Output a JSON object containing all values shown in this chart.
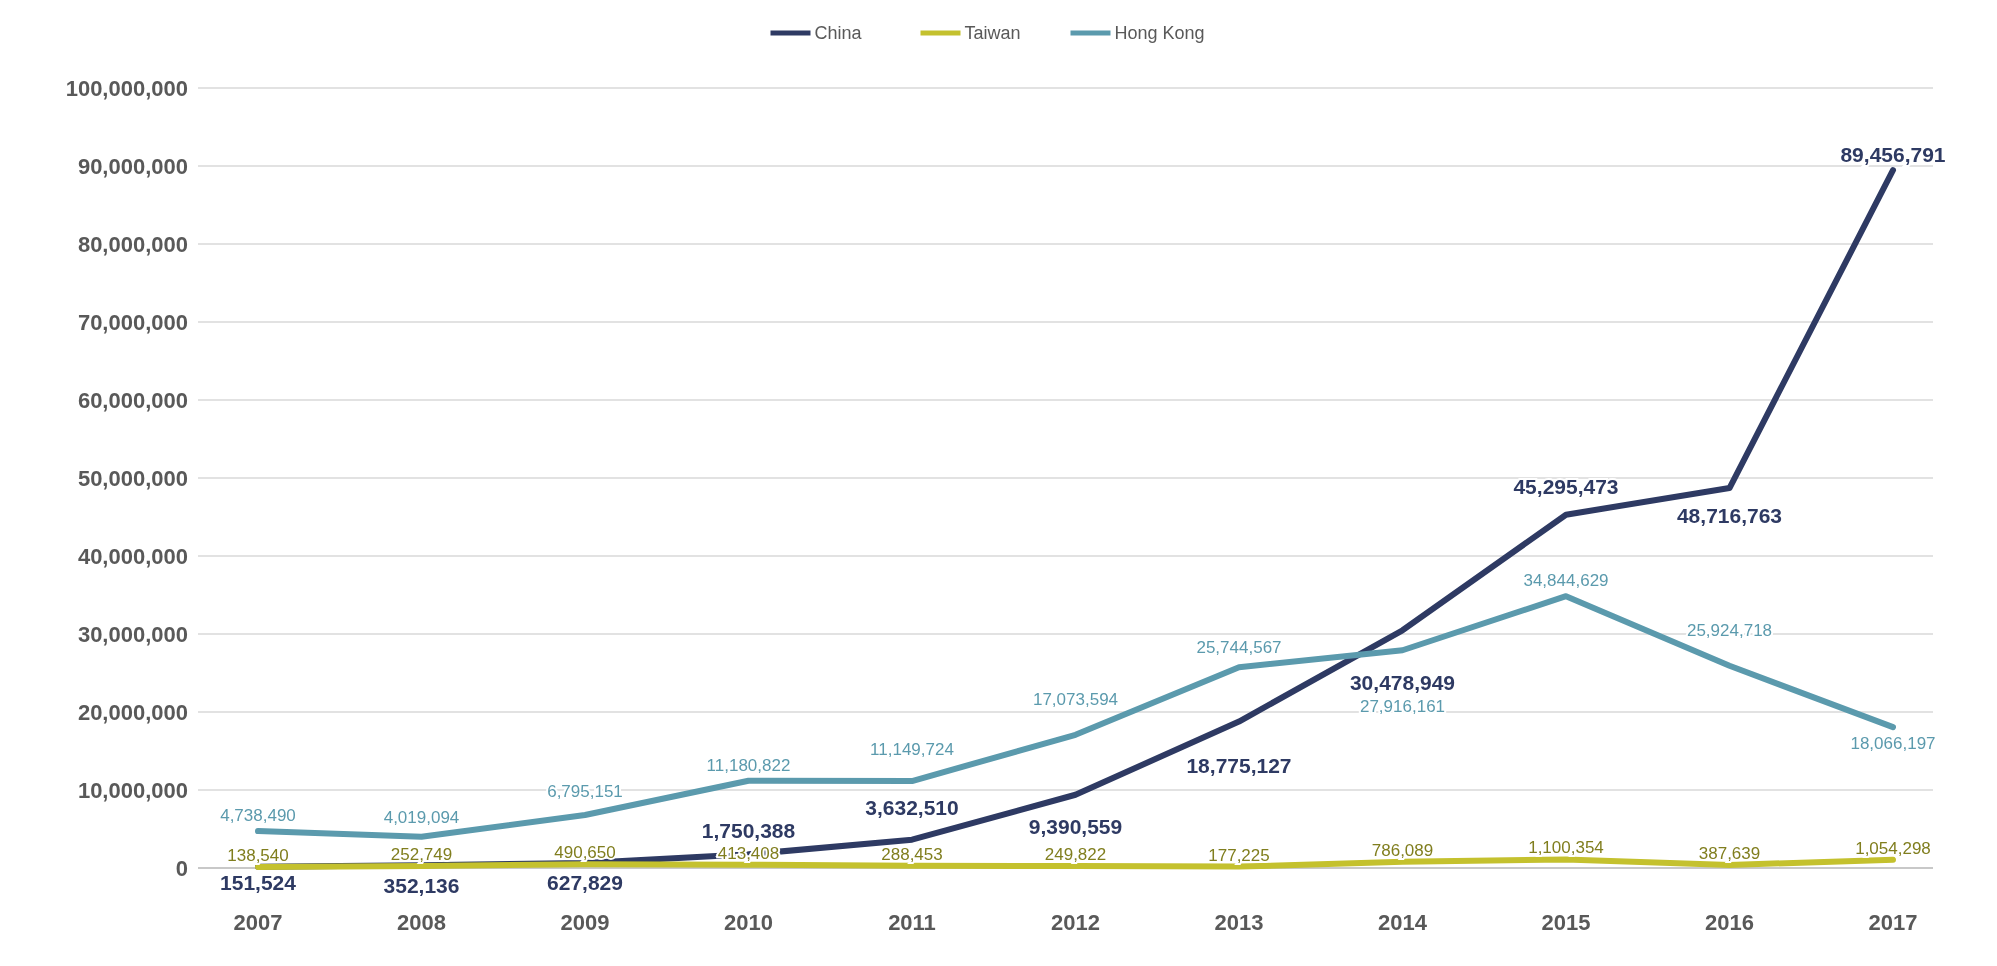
{
  "chart_data": {
    "type": "line",
    "categories": [
      "2007",
      "2008",
      "2009",
      "2010",
      "2011",
      "2012",
      "2013",
      "2014",
      "2015",
      "2016",
      "2017"
    ],
    "series": [
      {
        "name": "China",
        "color": "#2e3a63",
        "values": [
          151524,
          352136,
          627829,
          1750388,
          3632510,
          9390559,
          18775127,
          30478949,
          45295473,
          48716763,
          89456791
        ],
        "value_labels": [
          "151,524",
          "352,136",
          "627,829",
          "1,750,388",
          "3,632,510",
          "9,390,559",
          "18,775,127",
          "30,478,949",
          "45,295,473",
          "48,716,763",
          "89,456,791"
        ]
      },
      {
        "name": "Taiwan",
        "color": "#c4c12e",
        "values": [
          138540,
          252749,
          490650,
          413408,
          288453,
          249822,
          177225,
          786089,
          1100354,
          387639,
          1054298
        ],
        "value_labels": [
          "138,540",
          "252,749",
          "490,650",
          "413,408",
          "288,453",
          "249,822",
          "177,225",
          "786,089",
          "1,100,354",
          "387,639",
          "1,054,298"
        ]
      },
      {
        "name": "Hong Kong",
        "color": "#5b9aad",
        "values": [
          4738490,
          4019094,
          6795151,
          11180822,
          11149724,
          17073594,
          25744567,
          27916161,
          34844629,
          25924718,
          18066197
        ],
        "value_labels": [
          "4,738,490",
          "4,019,094",
          "6,795,151",
          "11,180,822",
          "11,149,724",
          "17,073,594",
          "25,744,567",
          "27,916,161",
          "34,844,629",
          "25,924,718",
          "18,066,197"
        ]
      }
    ],
    "ylim": [
      0,
      100000000
    ],
    "yticks": [
      0,
      {
        "value": 10000000,
        "label": "10,000,000"
      },
      {
        "value": 20000000,
        "label": "20,000,000"
      },
      {
        "value": 30000000,
        "label": "30,000,000"
      },
      {
        "value": 40000000,
        "label": "40,000,000"
      },
      {
        "value": 50000000,
        "label": "50,000,000"
      },
      {
        "value": 60000000,
        "label": "60,000,000"
      },
      {
        "value": 70000000,
        "label": "70,000,000"
      },
      {
        "value": 80000000,
        "label": "80,000,000"
      },
      {
        "value": 90000000,
        "label": "90,000,000"
      },
      {
        "value": 100000000,
        "label": "100,000,000"
      }
    ],
    "grid": "y",
    "legend": "top",
    "line_style": "solid"
  }
}
